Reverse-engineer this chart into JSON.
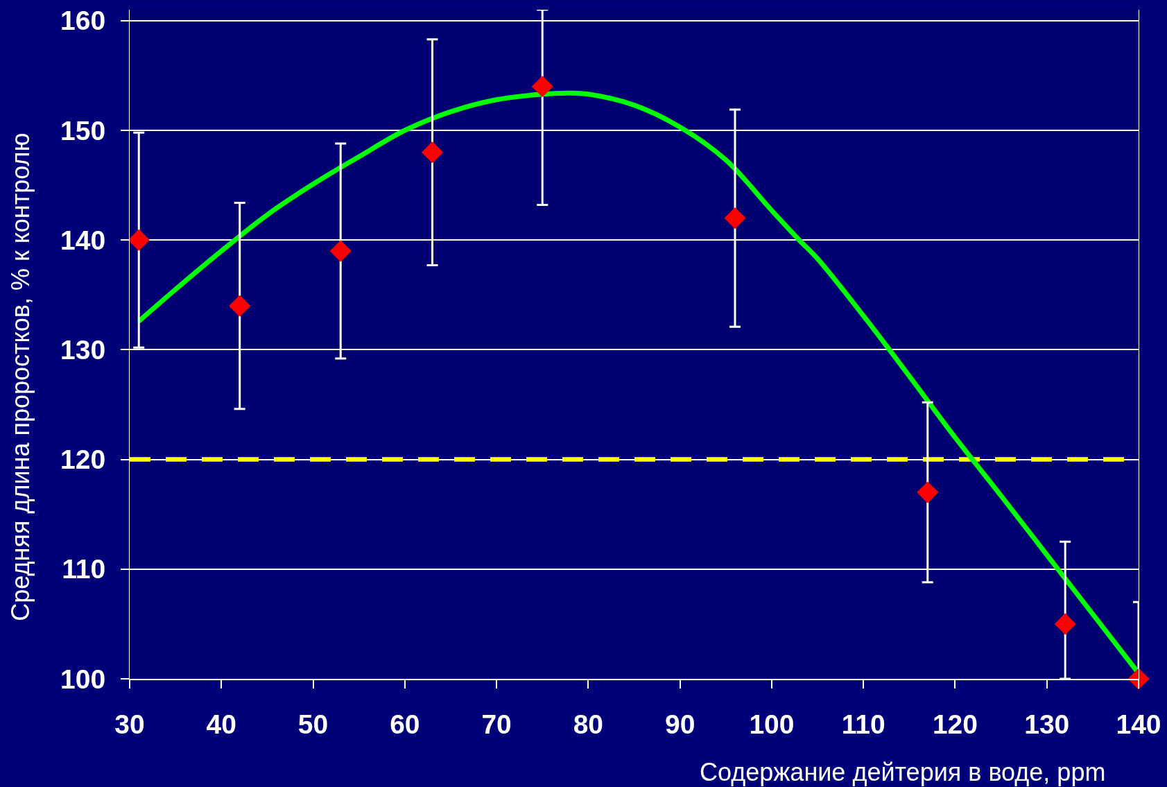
{
  "chart_data": {
    "type": "scatter",
    "xlabel": "Содержание дейтерия в воде, ppm",
    "ylabel": "Средняя длина проростков, % к контролю",
    "xlim": [
      30,
      140
    ],
    "xticks": [
      30,
      40,
      50,
      60,
      70,
      80,
      90,
      100,
      110,
      120,
      130,
      140
    ],
    "ylim": [
      100,
      161
    ],
    "yticks": [
      100,
      110,
      120,
      130,
      140,
      150,
      160
    ],
    "grid": "y",
    "series": [
      {
        "type": "line",
        "color": "#00ff00",
        "marker": "none",
        "line_style": "solid",
        "x": [
          31,
          35,
          40,
          45,
          50,
          55,
          60,
          65,
          70,
          75,
          78,
          80,
          85,
          90,
          95,
          100,
          103,
          105,
          110,
          115,
          120,
          125,
          130,
          135,
          140
        ],
        "values": [
          132.6,
          135.5,
          139.0,
          142.3,
          145.1,
          147.6,
          150.0,
          151.7,
          152.8,
          153.3,
          153.4,
          153.3,
          152.3,
          150.3,
          147.3,
          142.7,
          140.0,
          138.3,
          133.1,
          127.6,
          122.0,
          116.7,
          111.3,
          105.9,
          100.5
        ]
      },
      {
        "color": "#ff0000",
        "marker": "diamond",
        "x": [
          31,
          42,
          53,
          63,
          75,
          96,
          117,
          132,
          140
        ],
        "values": [
          140,
          134,
          139,
          148,
          154,
          142,
          117,
          105,
          100
        ],
        "errors": [
          9.8,
          9.4,
          9.8,
          10.3,
          [
            143.2,
            161
          ],
          9.9,
          8.2,
          [
            100,
            112.5
          ],
          [
            100,
            107.0
          ]
        ]
      }
    ],
    "ref_lines": [
      {
        "axis": "y",
        "value": 120,
        "color": "#ffff00",
        "line_style": "dashed"
      }
    ]
  }
}
